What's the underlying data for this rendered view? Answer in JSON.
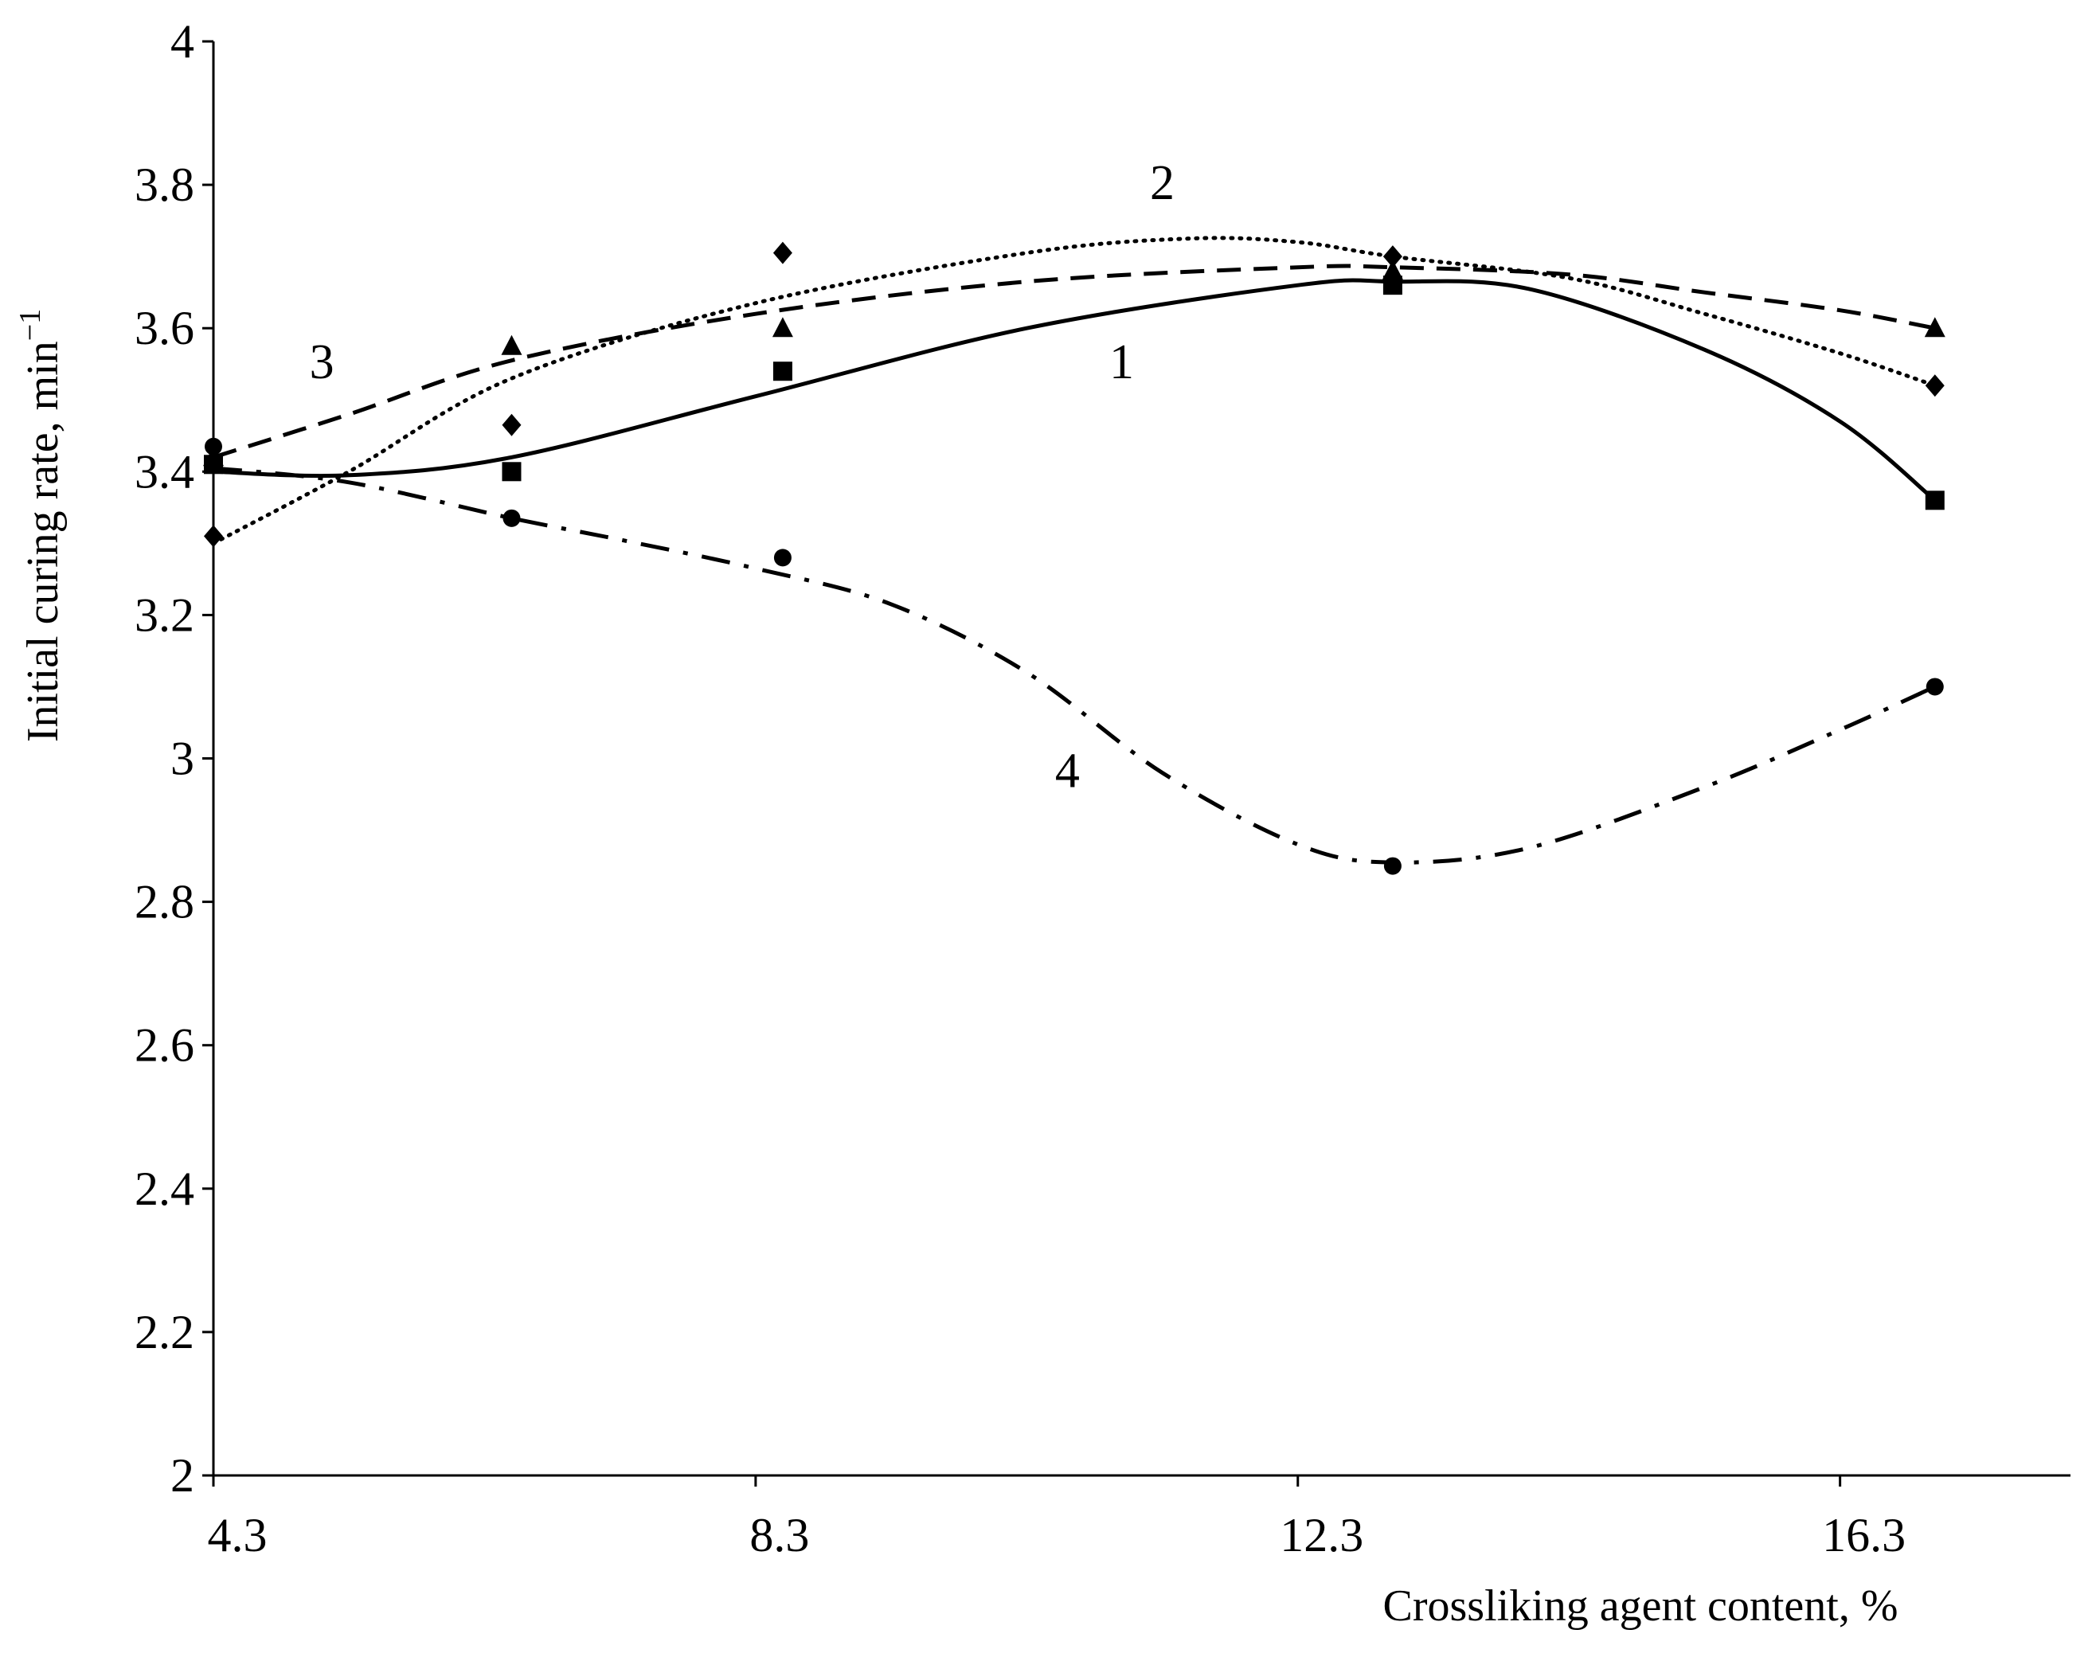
{
  "chart_data": {
    "type": "scatter",
    "title": "",
    "xlabel": "Crossliking agent content, %",
    "ylabel": "Initial curing rate, min",
    "ylabel_superscript": "−1",
    "xlim": [
      4.3,
      18.0
    ],
    "ylim": [
      2.0,
      4.0
    ],
    "x_ticks": [
      4.3,
      8.3,
      12.3,
      16.3
    ],
    "x_tick_labels": [
      "4.3",
      "8.3",
      "12.3",
      "16.3"
    ],
    "y_ticks": [
      2.0,
      2.2,
      2.4,
      2.6,
      2.8,
      3.0,
      3.2,
      3.4,
      3.6,
      3.8,
      4.0
    ],
    "y_tick_labels": [
      "2",
      "2.2",
      "2.4",
      "2.6",
      "2.8",
      "3",
      "3.2",
      "3.4",
      "3.6",
      "3.8",
      "4"
    ],
    "grid": false,
    "legend": "none",
    "series": [
      {
        "name": "1",
        "marker": "square",
        "line_style": "solid",
        "x": [
          4.3,
          6.5,
          8.5,
          13.0,
          17.0
        ],
        "y": [
          3.41,
          3.4,
          3.54,
          3.66,
          3.36
        ],
        "fit": [
          [
            4.3,
            3.4
          ],
          [
            5.3,
            3.395
          ],
          [
            6.5,
            3.42
          ],
          [
            8.3,
            3.505
          ],
          [
            10.3,
            3.6
          ],
          [
            12.3,
            3.66
          ],
          [
            13.0,
            3.665
          ],
          [
            14.0,
            3.655
          ],
          [
            15.3,
            3.57
          ],
          [
            16.3,
            3.47
          ],
          [
            17.0,
            3.36
          ]
        ],
        "label_text": "1",
        "label_at": [
          11.0,
          3.53
        ]
      },
      {
        "name": "2",
        "marker": "diamond",
        "line_style": "dotted",
        "x": [
          4.3,
          6.5,
          8.5,
          13.0,
          17.0
        ],
        "y": [
          3.31,
          3.465,
          3.705,
          3.7,
          3.52
        ],
        "fit": [
          [
            4.3,
            3.3
          ],
          [
            5.3,
            3.4
          ],
          [
            6.5,
            3.53
          ],
          [
            8.3,
            3.635
          ],
          [
            10.3,
            3.705
          ],
          [
            11.5,
            3.725
          ],
          [
            12.3,
            3.72
          ],
          [
            13.0,
            3.7
          ],
          [
            14.3,
            3.67
          ],
          [
            15.3,
            3.62
          ],
          [
            16.3,
            3.565
          ],
          [
            17.0,
            3.52
          ]
        ],
        "label_text": "2",
        "label_at": [
          11.3,
          3.78
        ]
      },
      {
        "name": "3",
        "marker": "triangle",
        "line_style": "dashed",
        "x": [
          4.3,
          6.5,
          8.5,
          13.0,
          17.0
        ],
        "y": [
          3.42,
          3.575,
          3.6,
          3.68,
          3.6
        ],
        "fit": [
          [
            4.3,
            3.42
          ],
          [
            5.3,
            3.48
          ],
          [
            6.5,
            3.555
          ],
          [
            8.3,
            3.62
          ],
          [
            10.3,
            3.665
          ],
          [
            12.3,
            3.685
          ],
          [
            13.0,
            3.685
          ],
          [
            14.3,
            3.675
          ],
          [
            15.3,
            3.65
          ],
          [
            16.3,
            3.625
          ],
          [
            17.0,
            3.6
          ]
        ],
        "label_text": "3",
        "label_at": [
          5.1,
          3.53
        ]
      },
      {
        "name": "4",
        "marker": "circle",
        "line_style": "dashdot",
        "x": [
          4.3,
          6.5,
          8.5,
          13.0,
          17.0
        ],
        "y": [
          3.435,
          3.335,
          3.28,
          2.85,
          3.1
        ],
        "fit": [
          [
            4.3,
            3.405
          ],
          [
            5.3,
            3.385
          ],
          [
            6.5,
            3.335
          ],
          [
            7.3,
            3.305
          ],
          [
            8.3,
            3.265
          ],
          [
            9.3,
            3.215
          ],
          [
            10.3,
            3.12
          ],
          [
            11.3,
            2.98
          ],
          [
            12.3,
            2.88
          ],
          [
            13.0,
            2.855
          ],
          [
            14.0,
            2.875
          ],
          [
            15.3,
            2.96
          ],
          [
            16.3,
            3.04
          ],
          [
            17.0,
            3.1
          ]
        ],
        "label_text": "4",
        "label_at": [
          10.6,
          2.96
        ]
      }
    ]
  }
}
